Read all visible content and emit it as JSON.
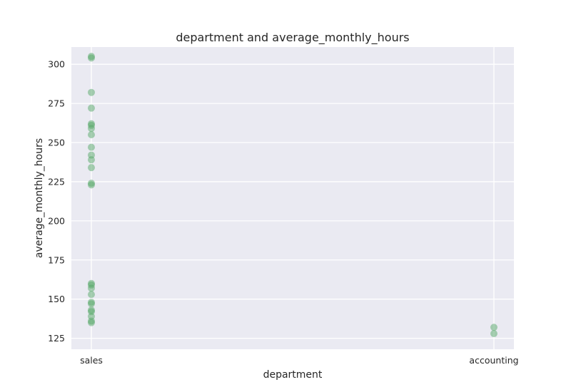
{
  "chart_data": {
    "type": "scatter",
    "title": "department and average_monthly_hours",
    "xlabel": "department",
    "ylabel": "average_monthly_hours",
    "categories": [
      "sales",
      "accounting"
    ],
    "ylim": [
      118,
      311
    ],
    "yticks": [
      125,
      150,
      175,
      200,
      225,
      250,
      275,
      300
    ],
    "grid": true,
    "marker_color": "#55a868",
    "background_color": "#eaeaf2",
    "points": [
      {
        "x": "sales",
        "y": 305
      },
      {
        "x": "sales",
        "y": 304
      },
      {
        "x": "sales",
        "y": 282
      },
      {
        "x": "sales",
        "y": 272
      },
      {
        "x": "sales",
        "y": 262
      },
      {
        "x": "sales",
        "y": 261
      },
      {
        "x": "sales",
        "y": 259
      },
      {
        "x": "sales",
        "y": 255
      },
      {
        "x": "sales",
        "y": 247
      },
      {
        "x": "sales",
        "y": 242
      },
      {
        "x": "sales",
        "y": 239
      },
      {
        "x": "sales",
        "y": 234
      },
      {
        "x": "sales",
        "y": 224
      },
      {
        "x": "sales",
        "y": 223
      },
      {
        "x": "sales",
        "y": 160
      },
      {
        "x": "sales",
        "y": 159
      },
      {
        "x": "sales",
        "y": 157
      },
      {
        "x": "sales",
        "y": 153
      },
      {
        "x": "sales",
        "y": 148
      },
      {
        "x": "sales",
        "y": 147
      },
      {
        "x": "sales",
        "y": 143
      },
      {
        "x": "sales",
        "y": 142
      },
      {
        "x": "sales",
        "y": 139
      },
      {
        "x": "sales",
        "y": 136
      },
      {
        "x": "sales",
        "y": 135
      },
      {
        "x": "accounting",
        "y": 132
      },
      {
        "x": "accounting",
        "y": 128
      }
    ]
  }
}
